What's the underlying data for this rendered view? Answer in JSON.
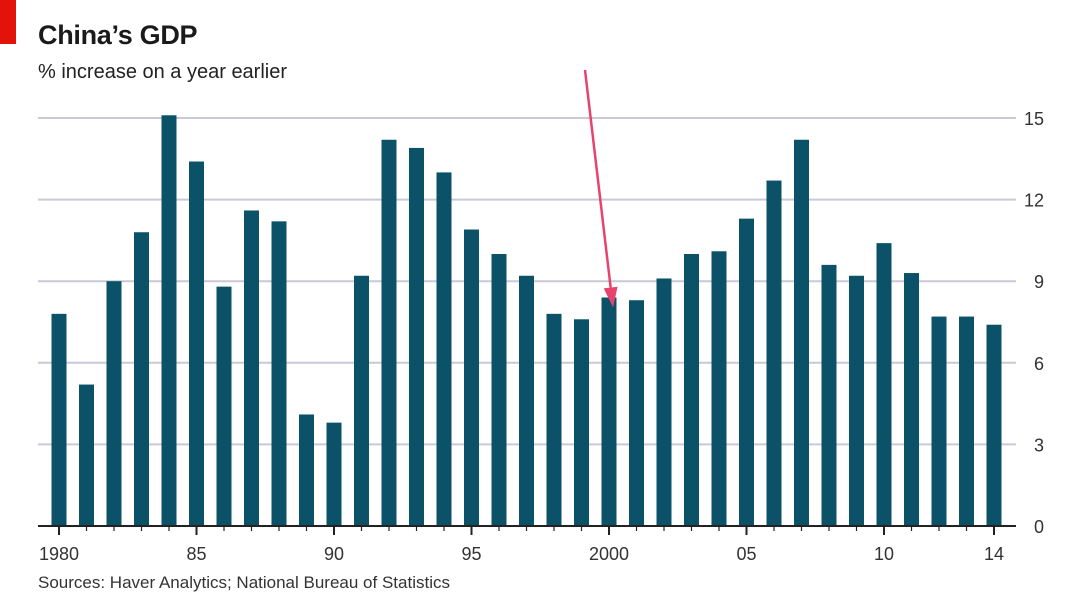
{
  "colors": {
    "accent": "#e3120b",
    "bar": "#0b5168",
    "grid": "#c9c9d6",
    "axis": "#222222",
    "arrow": "#e8436e"
  },
  "header": {
    "title": "China’s GDP",
    "subtitle": "% increase on a year earlier"
  },
  "footer": {
    "source": "Sources: Haver Analytics; National Bureau of Statistics"
  },
  "annotation": {
    "arrow_target_year": 2000,
    "arrow_tip_value": 8.0
  },
  "chart_data": {
    "type": "bar",
    "title": "China’s GDP",
    "subtitle": "% increase on a year earlier",
    "xlabel": "",
    "ylabel": "",
    "categories": [
      1980,
      1981,
      1982,
      1983,
      1984,
      1985,
      1986,
      1987,
      1988,
      1989,
      1990,
      1991,
      1992,
      1993,
      1994,
      1995,
      1996,
      1997,
      1998,
      1999,
      2000,
      2001,
      2002,
      2003,
      2004,
      2005,
      2006,
      2007,
      2008,
      2009,
      2010,
      2011,
      2012,
      2013,
      2014
    ],
    "values": [
      7.8,
      5.2,
      9.0,
      10.8,
      15.1,
      13.4,
      8.8,
      11.6,
      11.2,
      4.1,
      3.8,
      9.2,
      14.2,
      13.9,
      13.0,
      10.9,
      10.0,
      9.2,
      7.8,
      7.6,
      8.4,
      8.3,
      9.1,
      10.0,
      10.1,
      11.3,
      12.7,
      14.2,
      9.6,
      9.2,
      10.4,
      9.3,
      7.7,
      7.7,
      7.4
    ],
    "x_tick_labels": [
      "1980",
      "85",
      "90",
      "95",
      "2000",
      "05",
      "10",
      "14"
    ],
    "x_tick_years": [
      1980,
      1985,
      1990,
      1995,
      2000,
      2005,
      2010,
      2014
    ],
    "y_ticks": [
      0,
      3,
      6,
      9,
      12,
      15
    ],
    "ylim": [
      0,
      15
    ],
    "y_axis_side": "right",
    "grid": true,
    "legend": "none"
  }
}
